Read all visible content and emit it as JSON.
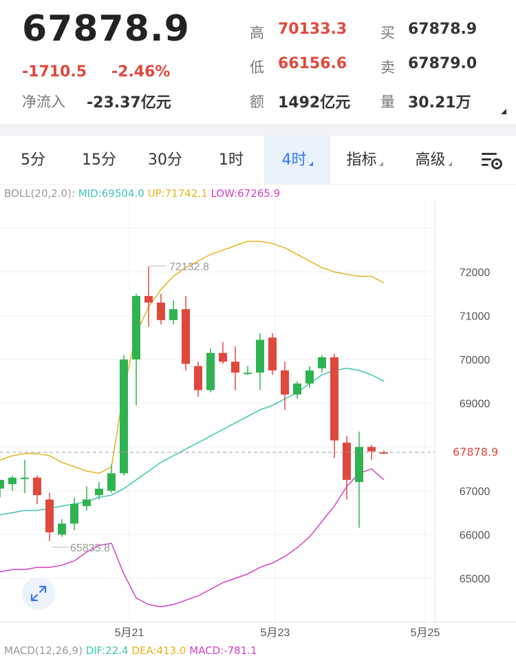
{
  "quote": {
    "last_price": "67878.9",
    "change": "-1710.5",
    "change_pct": "-2.46%",
    "net_inflow_label": "净流入",
    "net_inflow_value": "-23.37亿元",
    "high_label": "高",
    "high_value": "70133.3",
    "low_label": "低",
    "low_value": "66156.6",
    "amount_label": "额",
    "amount_value": "1492亿元",
    "buy_label": "买",
    "buy_value": "67878.9",
    "sell_label": "卖",
    "sell_value": "67879.0",
    "volume_label": "量",
    "volume_value": "30.21万"
  },
  "tabs": [
    {
      "label": "5分"
    },
    {
      "label": "15分"
    },
    {
      "label": "30分"
    },
    {
      "label": "1时"
    },
    {
      "label": "4时",
      "active": true
    },
    {
      "label": "指标"
    },
    {
      "label": "高级"
    }
  ],
  "settings_icon": "chart-settings-icon",
  "boll": {
    "name": "BOLL(20,2.0):",
    "mid": "MID:69504.0",
    "up": "UP:71742.1",
    "low": "LOW:67265.9",
    "colors": {
      "mid": "#3cc7b0",
      "up": "#e6b31c",
      "low": "#d63fc4"
    }
  },
  "macd": {
    "name": "MACD(12,26,9)",
    "dif": "DIF:22.4",
    "dea": "DEA:413.0",
    "macd": "MACD:-781.1"
  },
  "colors": {
    "up": "#e0483e",
    "down": "#2fb350",
    "accent": "#3478f6"
  },
  "chart_data": {
    "type": "candlestick",
    "y_ticks": [
      "72000",
      "71000",
      "70000",
      "69000",
      "67000",
      "66000",
      "65000"
    ],
    "ylim": [
      64000,
      72950
    ],
    "x_labels": [
      "5月21",
      "5月23",
      "5月25"
    ],
    "current_price_label": "67878.9",
    "max_annotation": "72132.8",
    "min_annotation": "65835.8",
    "candles": [
      {
        "o": 67050,
        "h": 67250,
        "l": 66850,
        "c": 67250
      },
      {
        "o": 67150,
        "h": 67350,
        "l": 67000,
        "c": 67300
      },
      {
        "o": 67300,
        "h": 67700,
        "l": 66950,
        "c": 67300
      },
      {
        "o": 67300,
        "h": 67350,
        "l": 66700,
        "c": 66900
      },
      {
        "o": 66800,
        "h": 66950,
        "l": 65850,
        "c": 66050
      },
      {
        "o": 66000,
        "h": 66350,
        "l": 65950,
        "c": 66250
      },
      {
        "o": 66250,
        "h": 66850,
        "l": 66100,
        "c": 66700
      },
      {
        "o": 66650,
        "h": 67100,
        "l": 66550,
        "c": 66800
      },
      {
        "o": 66900,
        "h": 67200,
        "l": 66800,
        "c": 67050
      },
      {
        "o": 67000,
        "h": 67600,
        "l": 66950,
        "c": 67400
      },
      {
        "o": 67400,
        "h": 70100,
        "l": 67350,
        "c": 70000
      },
      {
        "o": 70000,
        "h": 71500,
        "l": 68950,
        "c": 71450
      },
      {
        "o": 71450,
        "h": 72132.8,
        "l": 70750,
        "c": 71300
      },
      {
        "o": 71300,
        "h": 71500,
        "l": 70800,
        "c": 70900
      },
      {
        "o": 70900,
        "h": 71350,
        "l": 70800,
        "c": 71150
      },
      {
        "o": 71150,
        "h": 71450,
        "l": 69750,
        "c": 69900
      },
      {
        "o": 69850,
        "h": 69950,
        "l": 69150,
        "c": 69300
      },
      {
        "o": 69300,
        "h": 70250,
        "l": 69250,
        "c": 70150
      },
      {
        "o": 70150,
        "h": 70400,
        "l": 69900,
        "c": 69950
      },
      {
        "o": 69950,
        "h": 70300,
        "l": 69300,
        "c": 69700
      },
      {
        "o": 69700,
        "h": 69850,
        "l": 69650,
        "c": 69700
      },
      {
        "o": 69700,
        "h": 70600,
        "l": 69300,
        "c": 70450
      },
      {
        "o": 70500,
        "h": 70600,
        "l": 69650,
        "c": 69750
      },
      {
        "o": 69750,
        "h": 69950,
        "l": 68850,
        "c": 69200
      },
      {
        "o": 69200,
        "h": 69500,
        "l": 69100,
        "c": 69450
      },
      {
        "o": 69450,
        "h": 69850,
        "l": 69350,
        "c": 69750
      },
      {
        "o": 69800,
        "h": 70100,
        "l": 69700,
        "c": 70050
      },
      {
        "o": 70050,
        "h": 70133.3,
        "l": 67750,
        "c": 68150
      },
      {
        "o": 68100,
        "h": 68250,
        "l": 66800,
        "c": 67250
      },
      {
        "o": 67200,
        "h": 68350,
        "l": 66156.6,
        "c": 68000
      },
      {
        "o": 68000,
        "h": 68050,
        "l": 67700,
        "c": 67900
      },
      {
        "o": 67880,
        "h": 67920,
        "l": 67840,
        "c": 67878.9
      }
    ],
    "boll_up": [
      67700,
      67800,
      67850,
      67850,
      67800,
      67650,
      67550,
      67450,
      67400,
      67550,
      69300,
      70600,
      71200,
      71600,
      71900,
      72100,
      72250,
      72400,
      72500,
      72600,
      72700,
      72700,
      72650,
      72550,
      72400,
      72250,
      72100,
      72000,
      71950,
      71900,
      71900,
      71750
    ],
    "boll_mid": [
      66450,
      66500,
      66550,
      66550,
      66600,
      66650,
      66700,
      66750,
      66850,
      66900,
      67050,
      67250,
      67450,
      67650,
      67800,
      67950,
      68100,
      68250,
      68400,
      68550,
      68700,
      68850,
      68950,
      69100,
      69250,
      69450,
      69650,
      69750,
      69800,
      69750,
      69650,
      69500
    ],
    "boll_low": [
      65150,
      65200,
      65200,
      65250,
      65250,
      65300,
      65400,
      65600,
      65750,
      65800,
      65100,
      64550,
      64400,
      64350,
      64400,
      64500,
      64600,
      64750,
      64900,
      65000,
      65100,
      65250,
      65350,
      65500,
      65700,
      65950,
      66300,
      66650,
      67100,
      67400,
      67500,
      67250
    ]
  }
}
